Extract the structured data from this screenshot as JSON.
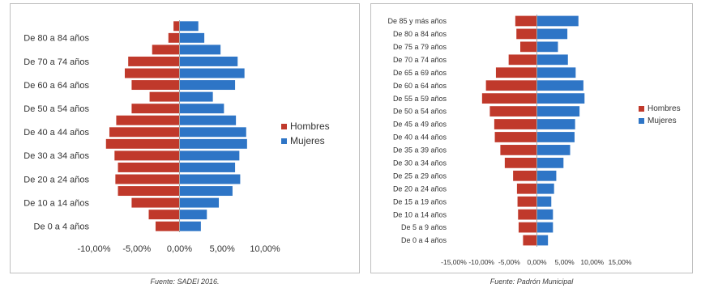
{
  "colors": {
    "hombres": "#c0392b",
    "mujeres": "#2e75c6",
    "axis": "#a6a6a6"
  },
  "chart_data": [
    {
      "type": "bar",
      "orientation": "horizontal",
      "title": "",
      "xlabel": "",
      "ylabel": "",
      "categories": [
        "De 0 a 4 años",
        "De 5 a 9 años",
        "De 10 a 14 años",
        "De 15 a 19 años",
        "De 20 a 24 años",
        "De 25 a 29 años",
        "De 30 a 34 años",
        "De 35 a 39 años",
        "De 40 a 44 años",
        "De 45 a 49 años",
        "De 50 a 54 años",
        "De 55 a 59 años",
        "De 60 a 64 años",
        "De 65 a 69 años",
        "De 70 a 74 años",
        "De 75 a 79 años",
        "De 80 a 84 años",
        "De 85 y más años"
      ],
      "y_tick_labels": [
        "De 0 a 4 años",
        "De 10 a 14 años",
        "De 20 a 24 años",
        "De 30 a 34 años",
        "De 40 a 44 años",
        "De 50 a 54 años",
        "De 60 a 64 años",
        "De 70 a 74 años",
        "De 80 a 84 años"
      ],
      "series": [
        {
          "name": "Hombres",
          "values": [
            -2.8,
            -3.6,
            -5.6,
            -7.2,
            -7.5,
            -7.2,
            -7.6,
            -8.6,
            -8.2,
            -7.4,
            -5.6,
            -3.5,
            -5.6,
            -6.4,
            -6.0,
            -3.2,
            -1.3,
            -0.7
          ]
        },
        {
          "name": "Mujeres",
          "values": [
            2.5,
            3.2,
            4.6,
            6.2,
            7.1,
            6.5,
            7.0,
            7.9,
            7.8,
            6.6,
            5.2,
            3.9,
            6.5,
            7.6,
            6.8,
            4.8,
            2.9,
            2.2
          ]
        }
      ],
      "xlim": [
        -10,
        10
      ],
      "xticks": [
        -10,
        -5,
        0,
        5,
        10
      ],
      "xtick_labels": [
        "-10,00%",
        "-5,00%",
        "0,00%",
        "5,00%",
        "10,00%"
      ],
      "legend": "right",
      "grid": false,
      "source": "Fuente: SADEI 2016."
    },
    {
      "type": "bar",
      "orientation": "horizontal",
      "title": "",
      "xlabel": "",
      "ylabel": "",
      "categories": [
        "De 0 a 4 años",
        "De 5 a 9 años",
        "De 10 a 14 años",
        "De 15 a 19 años",
        "De 20 a 24 años",
        "De 25 a 29 años",
        "De 30 a 34 años",
        "De 35 a 39 años",
        "De 40 a 44 años",
        "De 45 a 49 años",
        "De 50 a 54 años",
        "De 55 a 59 años",
        "De 60 a 64 años",
        "De 65 a 69 años",
        "De 70 a 74 años",
        "De 75 a 79 años",
        "De 80 a 84 años",
        "De 85 y más años"
      ],
      "y_tick_labels": [
        "De 0 a 4 años",
        "De 5 a 9 años",
        "De 10 a 14 años",
        "De 15 a 19 años",
        "De 20 a 24 años",
        "De 25 a 29 años",
        "De 30 a 34 años",
        "De 35 a 39 años",
        "De 40 a 44 años",
        "De 45 a 49 años",
        "De 50 a 54 años",
        "De 55 a 59 años",
        "De 60 a 64 años",
        "De 65 a 69 años",
        "De 70 a 74 años",
        "De 75 a 79 años",
        "De 80 a 84 años",
        "De 85 y más años"
      ],
      "series": [
        {
          "name": "Hombres",
          "values": [
            -2.5,
            -3.3,
            -3.4,
            -3.5,
            -3.6,
            -4.3,
            -5.8,
            -6.6,
            -7.6,
            -7.7,
            -8.5,
            -9.9,
            -9.2,
            -7.4,
            -5.1,
            -3.0,
            -3.7,
            -3.9
          ]
        },
        {
          "name": "Mujeres",
          "values": [
            2.0,
            2.9,
            2.9,
            2.6,
            3.1,
            3.5,
            4.8,
            6.0,
            6.8,
            6.9,
            7.7,
            8.6,
            8.4,
            7.0,
            5.6,
            3.8,
            5.5,
            7.5
          ]
        }
      ],
      "xlim": [
        -15,
        15
      ],
      "xticks": [
        -15,
        -10,
        -5,
        0,
        5,
        10,
        15
      ],
      "xtick_labels": [
        "-15,00%",
        "-10,00%",
        "-5,00%",
        "0,00%",
        "5,00%",
        "10,00%",
        "15,00%"
      ],
      "legend": "right",
      "grid": false,
      "source": "Fuente: Padrón Municipal"
    }
  ]
}
